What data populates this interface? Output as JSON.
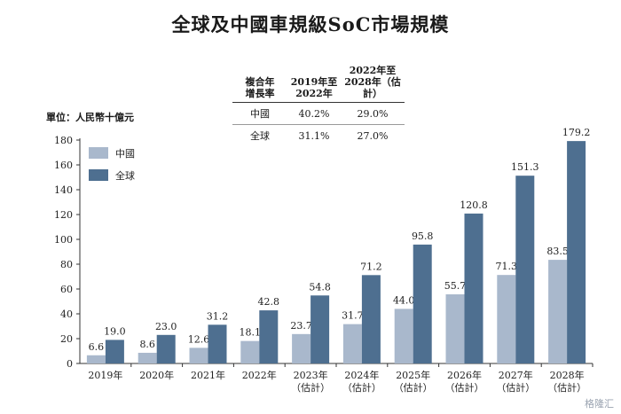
{
  "title": "全球及中國車規級SoC市場規模",
  "unit_label": "單位：人民幣十億元",
  "cagr_table": {
    "header": [
      "複合年\n增長率",
      "2019年至\n2022年",
      "2022年至\n2028年（估計）"
    ],
    "rows": [
      [
        "中國",
        "40.2%",
        "29.0%"
      ],
      [
        "全球",
        "31.1%",
        "27.0%"
      ]
    ]
  },
  "watermark": "格隆汇",
  "colors": {
    "china": "#a9b8cc",
    "global": "#4e6f90"
  },
  "chart_data": {
    "type": "bar",
    "categories": [
      "2019年",
      "2020年",
      "2021年",
      "2022年",
      "2023年\n（估計）",
      "2024年\n（估計）",
      "2025年\n（估計）",
      "2026年\n（估計）",
      "2027年\n（估計）",
      "2028年\n（估計）"
    ],
    "series": [
      {
        "name": "中國",
        "values": [
          6.6,
          8.6,
          12.6,
          18.1,
          23.7,
          31.7,
          44.0,
          55.7,
          71.3,
          83.5
        ],
        "labels": [
          "6.6",
          "8.6",
          "12.6",
          "18.1",
          "23.7",
          "31.7",
          "44.0",
          "55.7",
          "71.3",
          "83.5"
        ]
      },
      {
        "name": "全球",
        "values": [
          19.0,
          23.0,
          31.2,
          42.8,
          54.8,
          71.2,
          95.8,
          120.8,
          151.3,
          179.2
        ],
        "labels": [
          "19.0",
          "23.0",
          "31.2",
          "42.8",
          "54.8",
          "71.2",
          "95.8",
          "120.8",
          "151.3",
          "179.2"
        ]
      }
    ],
    "ylim": [
      0,
      180
    ],
    "yticks": [
      0,
      20,
      40,
      60,
      80,
      100,
      120,
      140,
      160,
      180
    ],
    "legend": "top-left",
    "grid": false
  }
}
